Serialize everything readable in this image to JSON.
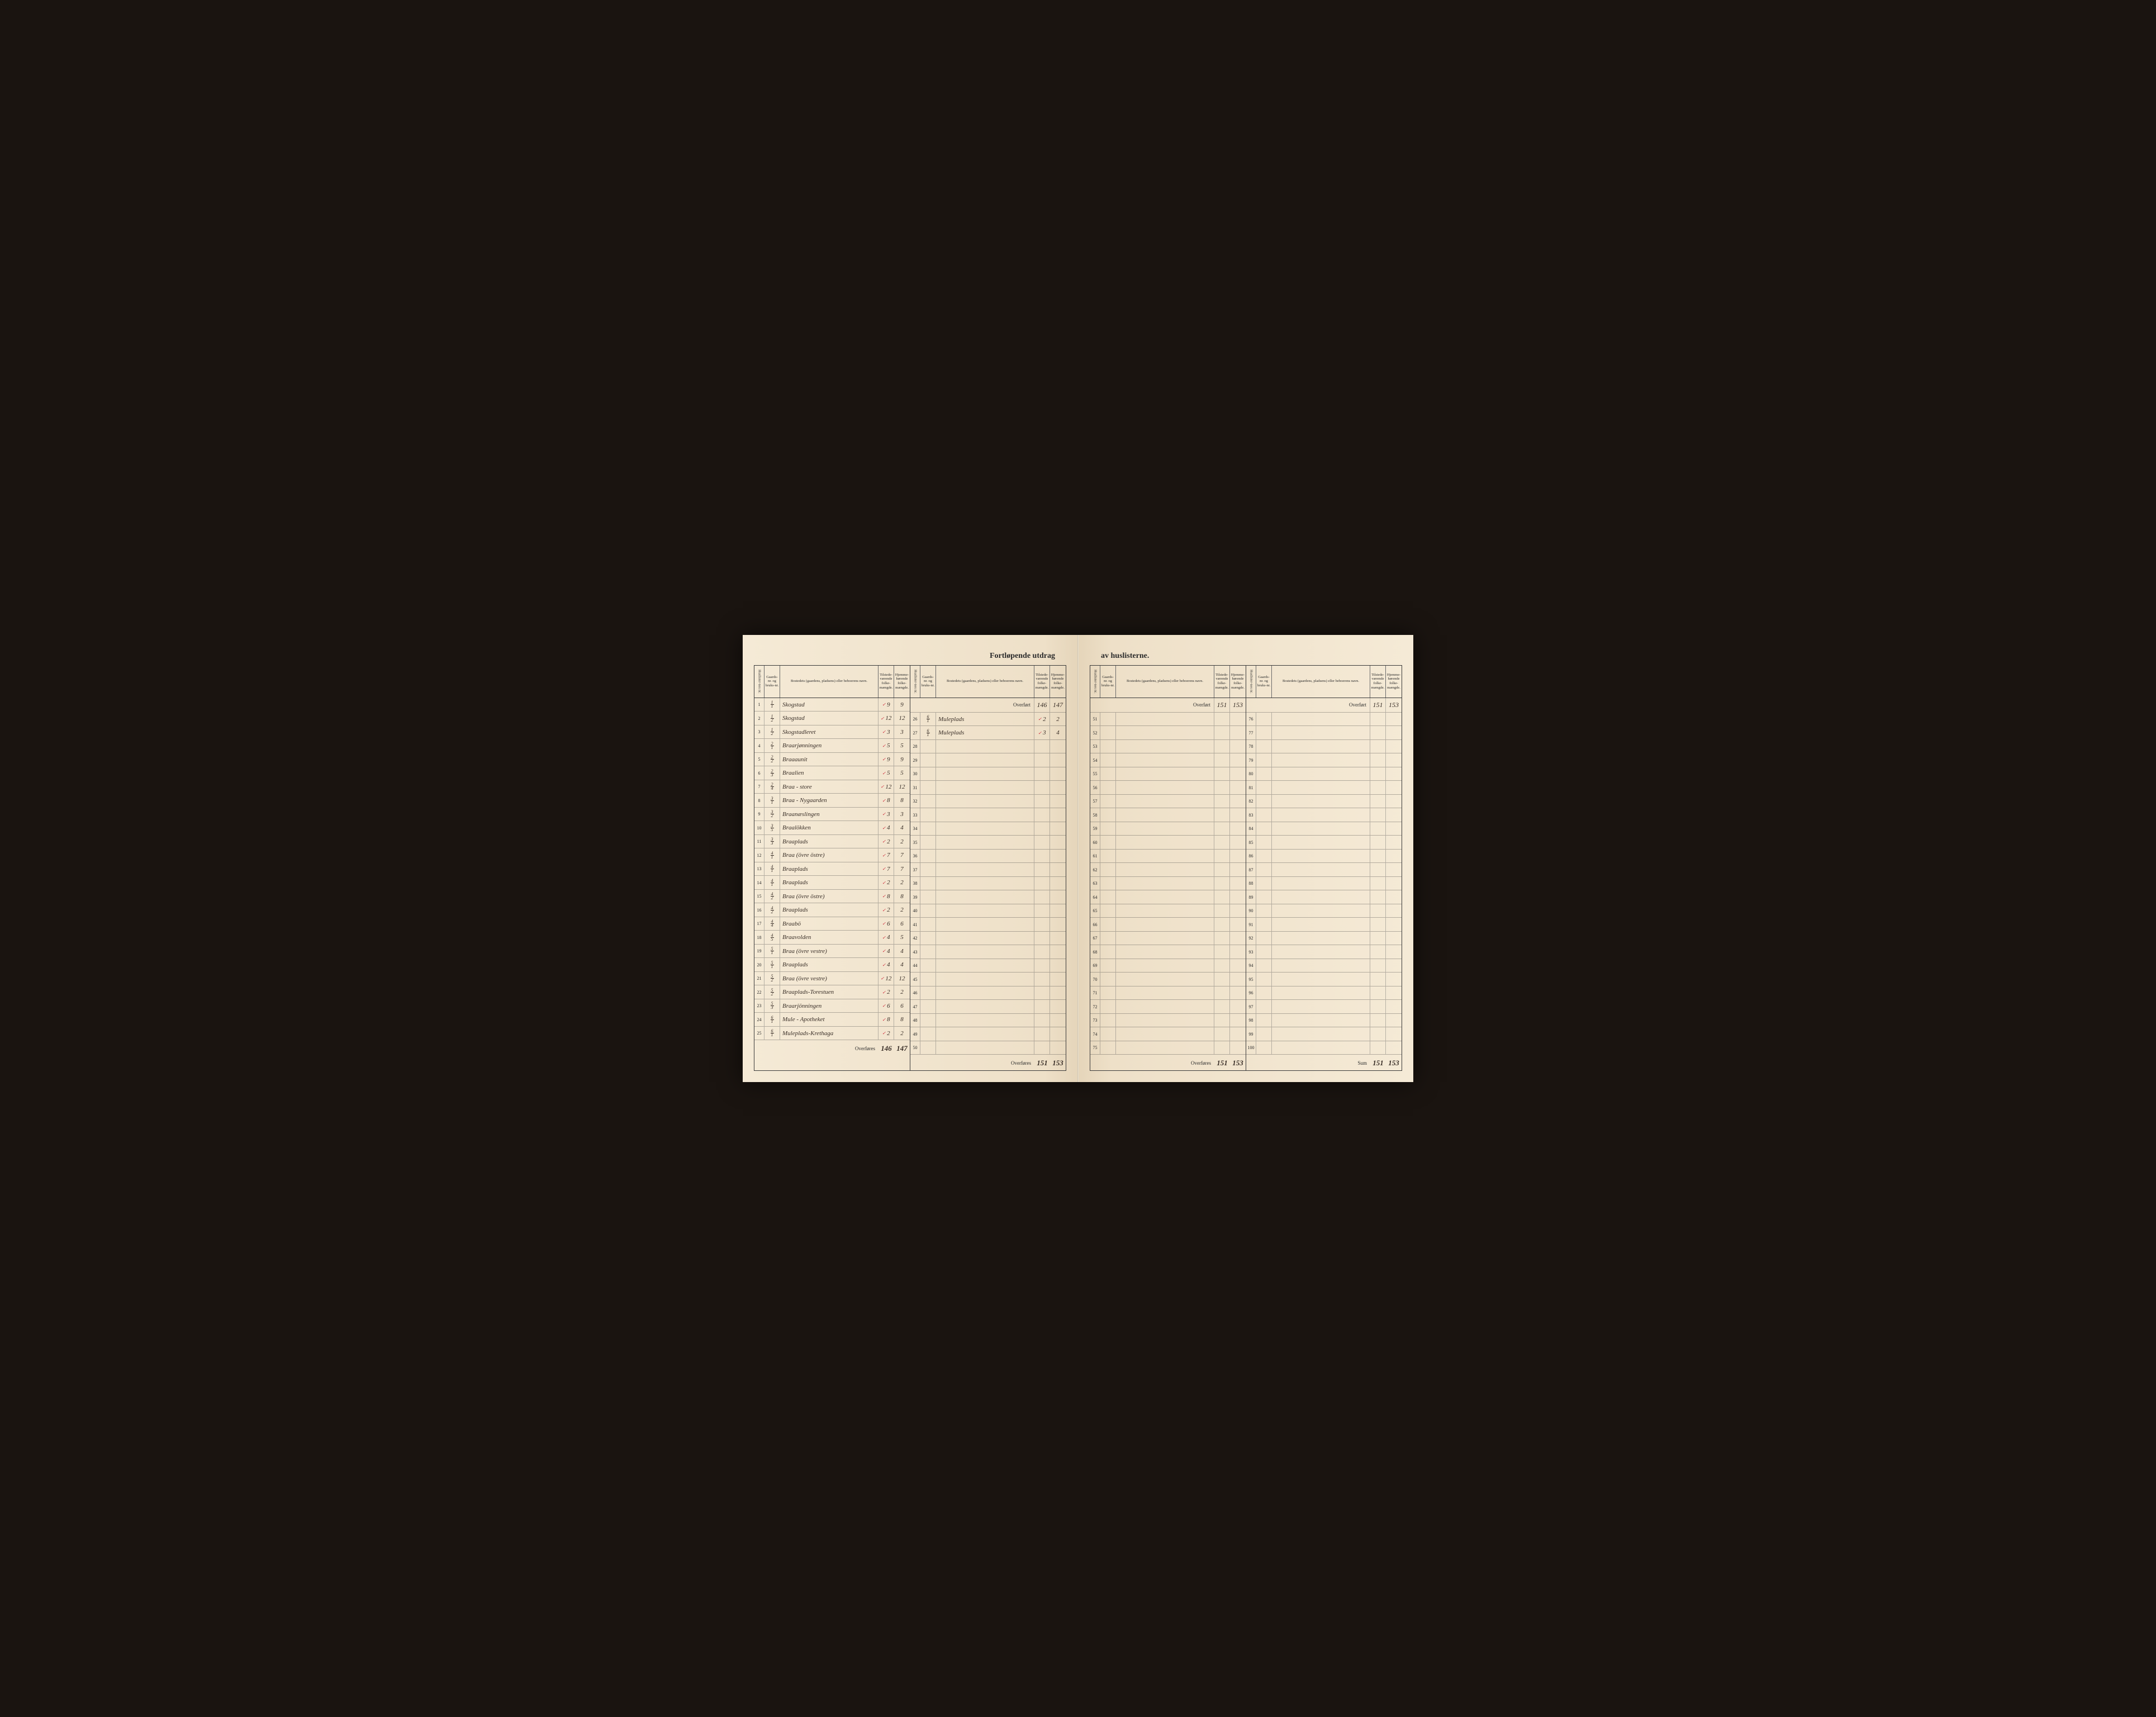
{
  "title_left": "Fortløpende utdrag",
  "title_right": "av huslisterne.",
  "headers": {
    "husl": "Huslister-nes nr.",
    "gaards": "Gaards-nr. og bruks-nr.",
    "bosted": "Bostedets (gaardens, pladsens) eller beboerens navn.",
    "tilst": "Tilstede-værende folke-mængde.",
    "hjem": "Hjemme-hørende folke-mængde."
  },
  "overfort_label": "Overført",
  "overfores_label": "Overføres",
  "sum_label": "Sum",
  "section_a": {
    "rows": [
      {
        "n": "1",
        "g": "1/1",
        "b": "Skogstad",
        "t": "9",
        "h": "9"
      },
      {
        "n": "2",
        "g": "1/2",
        "b": "Skogstad",
        "t": "12",
        "h": "12"
      },
      {
        "n": "3",
        "g": "1/2",
        "b": "Skogstadleret",
        "t": "3",
        "h": "3"
      },
      {
        "n": "4",
        "g": "2/1",
        "b": "Braarjønningen",
        "t": "5",
        "h": "5"
      },
      {
        "n": "5",
        "g": "2/2",
        "b": "Braaaunit",
        "t": "9",
        "h": "9"
      },
      {
        "n": "6",
        "g": "2/3",
        "b": "Braalien",
        "t": "5",
        "h": "5"
      },
      {
        "n": "7",
        "g": "2/4",
        "b": "Braa - store",
        "t": "12",
        "h": "12"
      },
      {
        "n": "8",
        "g": "3/1",
        "b": "Braa - Nygaarden",
        "t": "8",
        "h": "8"
      },
      {
        "n": "9",
        "g": "3/2",
        "b": "Braanæslingen",
        "t": "3",
        "h": "3"
      },
      {
        "n": "10",
        "g": "3/5",
        "b": "Braalökken",
        "t": "4",
        "h": "4"
      },
      {
        "n": "11",
        "g": "3/3",
        "b": "Braaplads",
        "t": "2",
        "h": "2"
      },
      {
        "n": "12",
        "g": "4/1",
        "b": "Braa (övre östre)",
        "t": "7",
        "h": "7"
      },
      {
        "n": "13",
        "g": "4/1",
        "b": "Braaplads",
        "t": "7",
        "h": "7"
      },
      {
        "n": "14",
        "g": "4/1",
        "b": "Braaplads",
        "t": "2",
        "h": "2"
      },
      {
        "n": "15",
        "g": "4/2",
        "b": "Braa (övre östre)",
        "t": "8",
        "h": "8"
      },
      {
        "n": "16",
        "g": "4/2",
        "b": "Braaplads",
        "t": "2",
        "h": "2"
      },
      {
        "n": "17",
        "g": "4/4",
        "b": "Braabö",
        "t": "6",
        "h": "6"
      },
      {
        "n": "18",
        "g": "4/5",
        "b": "Braavolden",
        "t": "4",
        "h": "5"
      },
      {
        "n": "19",
        "g": "5/1",
        "b": "Braa (övre vestre)",
        "t": "4",
        "h": "4"
      },
      {
        "n": "20",
        "g": "5/1",
        "b": "Braaplads",
        "t": "4",
        "h": "4"
      },
      {
        "n": "21",
        "g": "5/2",
        "b": "Braa (övre vestre)",
        "t": "12",
        "h": "12"
      },
      {
        "n": "22",
        "g": "5/2",
        "b": "Braaplads-Torestuen",
        "t": "2",
        "h": "2"
      },
      {
        "n": "23",
        "g": "5/3",
        "b": "Braarjönningen",
        "t": "6",
        "h": "6"
      },
      {
        "n": "24",
        "g": "6/1",
        "b": "Mule - Apotheket",
        "t": "8",
        "h": "8"
      },
      {
        "n": "25",
        "g": "6/1",
        "b": "Muleplads-Krethaga",
        "t": "2",
        "h": "2"
      }
    ],
    "footer": {
      "t": "146",
      "h": "147"
    }
  },
  "section_b": {
    "overfort": {
      "t": "146",
      "h": "147"
    },
    "rows": [
      {
        "n": "26",
        "g": "6/1",
        "b": "Muleplads",
        "t": "2",
        "h": "2"
      },
      {
        "n": "27",
        "g": "6/1",
        "b": "Muleplads",
        "t": "3",
        "h": "4"
      },
      {
        "n": "28",
        "g": "",
        "b": "",
        "t": "",
        "h": ""
      },
      {
        "n": "29",
        "g": "",
        "b": "",
        "t": "",
        "h": ""
      },
      {
        "n": "30",
        "g": "",
        "b": "",
        "t": "",
        "h": ""
      },
      {
        "n": "31",
        "g": "",
        "b": "",
        "t": "",
        "h": ""
      },
      {
        "n": "32",
        "g": "",
        "b": "",
        "t": "",
        "h": ""
      },
      {
        "n": "33",
        "g": "",
        "b": "",
        "t": "",
        "h": ""
      },
      {
        "n": "34",
        "g": "",
        "b": "",
        "t": "",
        "h": ""
      },
      {
        "n": "35",
        "g": "",
        "b": "",
        "t": "",
        "h": ""
      },
      {
        "n": "36",
        "g": "",
        "b": "",
        "t": "",
        "h": ""
      },
      {
        "n": "37",
        "g": "",
        "b": "",
        "t": "",
        "h": ""
      },
      {
        "n": "38",
        "g": "",
        "b": "",
        "t": "",
        "h": ""
      },
      {
        "n": "39",
        "g": "",
        "b": "",
        "t": "",
        "h": ""
      },
      {
        "n": "40",
        "g": "",
        "b": "",
        "t": "",
        "h": ""
      },
      {
        "n": "41",
        "g": "",
        "b": "",
        "t": "",
        "h": ""
      },
      {
        "n": "42",
        "g": "",
        "b": "",
        "t": "",
        "h": ""
      },
      {
        "n": "43",
        "g": "",
        "b": "",
        "t": "",
        "h": ""
      },
      {
        "n": "44",
        "g": "",
        "b": "",
        "t": "",
        "h": ""
      },
      {
        "n": "45",
        "g": "",
        "b": "",
        "t": "",
        "h": ""
      },
      {
        "n": "46",
        "g": "",
        "b": "",
        "t": "",
        "h": ""
      },
      {
        "n": "47",
        "g": "",
        "b": "",
        "t": "",
        "h": ""
      },
      {
        "n": "48",
        "g": "",
        "b": "",
        "t": "",
        "h": ""
      },
      {
        "n": "49",
        "g": "",
        "b": "",
        "t": "",
        "h": ""
      },
      {
        "n": "50",
        "g": "",
        "b": "",
        "t": "",
        "h": ""
      }
    ],
    "footer": {
      "t": "151",
      "h": "153"
    }
  },
  "section_c": {
    "overfort": {
      "t": "151",
      "h": "153"
    },
    "rows": [
      {
        "n": "51",
        "g": "",
        "b": "",
        "t": "",
        "h": ""
      },
      {
        "n": "52",
        "g": "",
        "b": "",
        "t": "",
        "h": ""
      },
      {
        "n": "53",
        "g": "",
        "b": "",
        "t": "",
        "h": ""
      },
      {
        "n": "54",
        "g": "",
        "b": "",
        "t": "",
        "h": ""
      },
      {
        "n": "55",
        "g": "",
        "b": "",
        "t": "",
        "h": ""
      },
      {
        "n": "56",
        "g": "",
        "b": "",
        "t": "",
        "h": ""
      },
      {
        "n": "57",
        "g": "",
        "b": "",
        "t": "",
        "h": ""
      },
      {
        "n": "58",
        "g": "",
        "b": "",
        "t": "",
        "h": ""
      },
      {
        "n": "59",
        "g": "",
        "b": "",
        "t": "",
        "h": ""
      },
      {
        "n": "60",
        "g": "",
        "b": "",
        "t": "",
        "h": ""
      },
      {
        "n": "61",
        "g": "",
        "b": "",
        "t": "",
        "h": ""
      },
      {
        "n": "62",
        "g": "",
        "b": "",
        "t": "",
        "h": ""
      },
      {
        "n": "63",
        "g": "",
        "b": "",
        "t": "",
        "h": ""
      },
      {
        "n": "64",
        "g": "",
        "b": "",
        "t": "",
        "h": ""
      },
      {
        "n": "65",
        "g": "",
        "b": "",
        "t": "",
        "h": ""
      },
      {
        "n": "66",
        "g": "",
        "b": "",
        "t": "",
        "h": ""
      },
      {
        "n": "67",
        "g": "",
        "b": "",
        "t": "",
        "h": ""
      },
      {
        "n": "68",
        "g": "",
        "b": "",
        "t": "",
        "h": ""
      },
      {
        "n": "69",
        "g": "",
        "b": "",
        "t": "",
        "h": ""
      },
      {
        "n": "70",
        "g": "",
        "b": "",
        "t": "",
        "h": ""
      },
      {
        "n": "71",
        "g": "",
        "b": "",
        "t": "",
        "h": ""
      },
      {
        "n": "72",
        "g": "",
        "b": "",
        "t": "",
        "h": ""
      },
      {
        "n": "73",
        "g": "",
        "b": "",
        "t": "",
        "h": ""
      },
      {
        "n": "74",
        "g": "",
        "b": "",
        "t": "",
        "h": ""
      },
      {
        "n": "75",
        "g": "",
        "b": "",
        "t": "",
        "h": ""
      }
    ],
    "footer": {
      "t": "151",
      "h": "153"
    }
  },
  "section_d": {
    "overfort": {
      "t": "151",
      "h": "153"
    },
    "rows": [
      {
        "n": "76",
        "g": "",
        "b": "",
        "t": "",
        "h": ""
      },
      {
        "n": "77",
        "g": "",
        "b": "",
        "t": "",
        "h": ""
      },
      {
        "n": "78",
        "g": "",
        "b": "",
        "t": "",
        "h": ""
      },
      {
        "n": "79",
        "g": "",
        "b": "",
        "t": "",
        "h": ""
      },
      {
        "n": "80",
        "g": "",
        "b": "",
        "t": "",
        "h": ""
      },
      {
        "n": "81",
        "g": "",
        "b": "",
        "t": "",
        "h": ""
      },
      {
        "n": "82",
        "g": "",
        "b": "",
        "t": "",
        "h": ""
      },
      {
        "n": "83",
        "g": "",
        "b": "",
        "t": "",
        "h": ""
      },
      {
        "n": "84",
        "g": "",
        "b": "",
        "t": "",
        "h": ""
      },
      {
        "n": "85",
        "g": "",
        "b": "",
        "t": "",
        "h": ""
      },
      {
        "n": "86",
        "g": "",
        "b": "",
        "t": "",
        "h": ""
      },
      {
        "n": "87",
        "g": "",
        "b": "",
        "t": "",
        "h": ""
      },
      {
        "n": "88",
        "g": "",
        "b": "",
        "t": "",
        "h": ""
      },
      {
        "n": "89",
        "g": "",
        "b": "",
        "t": "",
        "h": ""
      },
      {
        "n": "90",
        "g": "",
        "b": "",
        "t": "",
        "h": ""
      },
      {
        "n": "91",
        "g": "",
        "b": "",
        "t": "",
        "h": ""
      },
      {
        "n": "92",
        "g": "",
        "b": "",
        "t": "",
        "h": ""
      },
      {
        "n": "93",
        "g": "",
        "b": "",
        "t": "",
        "h": ""
      },
      {
        "n": "94",
        "g": "",
        "b": "",
        "t": "",
        "h": ""
      },
      {
        "n": "95",
        "g": "",
        "b": "",
        "t": "",
        "h": ""
      },
      {
        "n": "96",
        "g": "",
        "b": "",
        "t": "",
        "h": ""
      },
      {
        "n": "97",
        "g": "",
        "b": "",
        "t": "",
        "h": ""
      },
      {
        "n": "98",
        "g": "",
        "b": "",
        "t": "",
        "h": ""
      },
      {
        "n": "99",
        "g": "",
        "b": "",
        "t": "",
        "h": ""
      },
      {
        "n": "100",
        "g": "",
        "b": "",
        "t": "",
        "h": ""
      }
    ],
    "footer": {
      "t": "151",
      "h": "153"
    }
  }
}
